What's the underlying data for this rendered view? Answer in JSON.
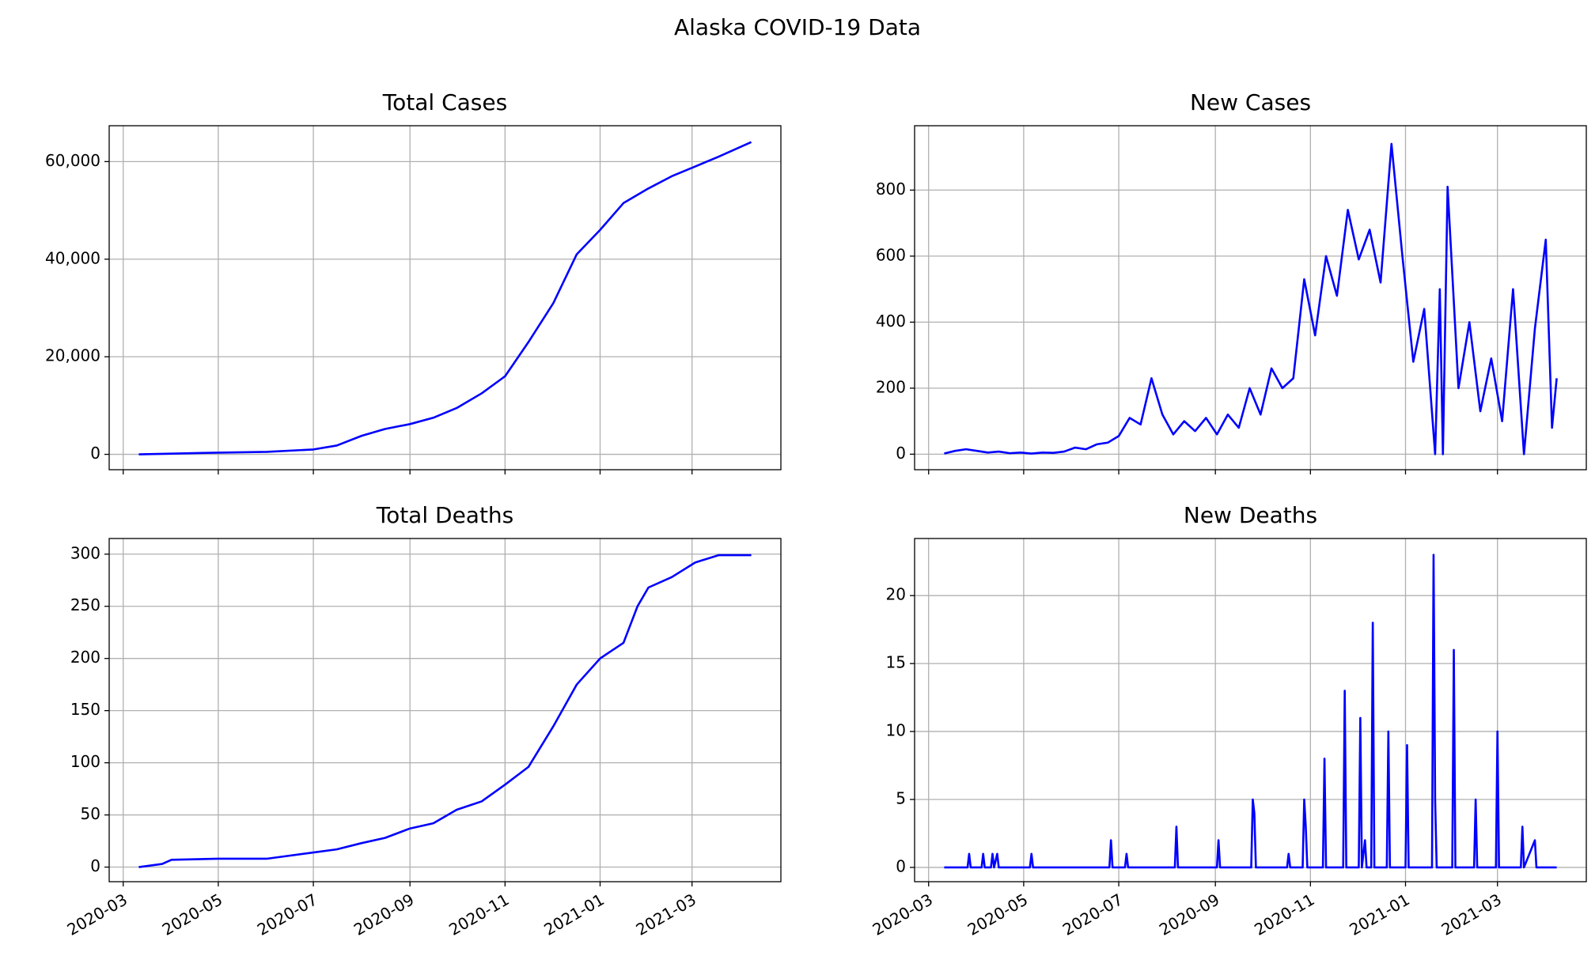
{
  "title": "Alaska COVID-19 Data",
  "chart_data": [
    {
      "type": "line",
      "title": "Total Cases",
      "grid": true,
      "color": "#0000ff",
      "x": [
        10,
        31,
        61,
        92,
        122,
        137,
        153,
        168,
        184,
        199,
        214,
        230,
        245,
        260,
        276,
        291,
        306,
        321,
        337,
        352,
        367,
        382,
        403
      ],
      "values": [
        0,
        150,
        350,
        500,
        1000,
        1800,
        3800,
        5200,
        6200,
        7500,
        9500,
        12500,
        16000,
        23000,
        31000,
        41000,
        46000,
        51500,
        54500,
        57000,
        59000,
        61000,
        64000
      ],
      "xlim": [
        -9,
        422
      ],
      "xticks": [
        0,
        61,
        122,
        184,
        245,
        306,
        365
      ],
      "ylim": [
        -3150,
        67350
      ],
      "yticks": [
        0,
        {
          "value": 20000,
          "label": "20,000"
        },
        {
          "value": 40000,
          "label": "40,000"
        },
        {
          "value": 60000,
          "label": "60,000"
        }
      ]
    },
    {
      "type": "line",
      "title": "New Cases",
      "grid": true,
      "color": "#0000ff",
      "x": [
        10,
        17,
        24,
        31,
        38,
        45,
        52,
        59,
        66,
        73,
        80,
        87,
        94,
        101,
        108,
        115,
        122,
        129,
        136,
        143,
        150,
        157,
        164,
        171,
        178,
        185,
        192,
        199,
        206,
        213,
        220,
        227,
        234,
        241,
        248,
        255,
        262,
        269,
        276,
        283,
        290,
        297,
        304,
        311,
        318,
        325,
        328,
        330,
        333,
        340,
        347,
        354,
        361,
        368,
        375,
        382,
        389,
        396,
        400,
        403
      ],
      "values": [
        2,
        10,
        15,
        10,
        5,
        8,
        3,
        5,
        2,
        5,
        4,
        8,
        20,
        15,
        30,
        35,
        55,
        110,
        90,
        230,
        120,
        60,
        100,
        70,
        110,
        60,
        120,
        80,
        200,
        120,
        260,
        200,
        230,
        530,
        360,
        600,
        480,
        740,
        590,
        680,
        520,
        940,
        600,
        280,
        440,
        0,
        500,
        0,
        810,
        200,
        400,
        130,
        290,
        100,
        500,
        0,
        380,
        650,
        80,
        230
      ],
      "xlim": [
        -9,
        422
      ],
      "xticks": [
        0,
        61,
        122,
        184,
        245,
        306,
        365
      ],
      "ylim": [
        -47,
        995
      ],
      "yticks": [
        0,
        200,
        400,
        600,
        800
      ]
    },
    {
      "type": "line",
      "title": "Total Deaths",
      "grid": true,
      "color": "#0000ff",
      "x": [
        10,
        25,
        31,
        61,
        92,
        122,
        137,
        153,
        168,
        184,
        199,
        214,
        230,
        245,
        260,
        276,
        291,
        306,
        321,
        330,
        337,
        352,
        367,
        382,
        403
      ],
      "values": [
        0,
        3,
        7,
        8,
        8,
        14,
        17,
        23,
        28,
        37,
        42,
        55,
        63,
        79,
        96,
        135,
        175,
        200,
        215,
        250,
        268,
        278,
        292,
        299,
        299
      ],
      "xlim": [
        -9,
        422
      ],
      "xticks": [
        {
          "value": 0,
          "label": "2020-03"
        },
        {
          "value": 61,
          "label": "2020-05"
        },
        {
          "value": 122,
          "label": "2020-07"
        },
        {
          "value": 184,
          "label": "2020-09"
        },
        {
          "value": 245,
          "label": "2020-11"
        },
        {
          "value": 306,
          "label": "2021-01"
        },
        {
          "value": 365,
          "label": "2021-03"
        }
      ],
      "ylim": [
        -14,
        315
      ],
      "yticks": [
        0,
        50,
        100,
        150,
        200,
        250,
        300
      ]
    },
    {
      "type": "line",
      "title": "New Deaths",
      "grid": true,
      "color": "#0000ff",
      "x": [
        10,
        25,
        26,
        27,
        34,
        35,
        36,
        40,
        41,
        42,
        44,
        45,
        65,
        66,
        67,
        116,
        117,
        118,
        126,
        127,
        128,
        158,
        159,
        160,
        185,
        186,
        187,
        207,
        208,
        209,
        210,
        230,
        231,
        232,
        240,
        241,
        242,
        243,
        253,
        254,
        255,
        266,
        267,
        268,
        276,
        277,
        278,
        280,
        281,
        284,
        285,
        286,
        294,
        295,
        296,
        306,
        307,
        308,
        323,
        324,
        325,
        326,
        336,
        337,
        338,
        350,
        351,
        352,
        364,
        365,
        366,
        380,
        381,
        382,
        389,
        390,
        403
      ],
      "values": [
        0,
        0,
        1,
        0,
        0,
        1,
        0,
        0,
        1,
        0,
        1,
        0,
        0,
        1,
        0,
        0,
        2,
        0,
        0,
        1,
        0,
        0,
        3,
        0,
        0,
        2,
        0,
        0,
        5,
        4,
        0,
        0,
        1,
        0,
        0,
        5,
        3,
        0,
        0,
        8,
        0,
        0,
        13,
        0,
        0,
        11,
        0,
        2,
        0,
        0,
        18,
        0,
        0,
        10,
        0,
        0,
        9,
        0,
        0,
        23,
        5,
        0,
        0,
        16,
        0,
        0,
        5,
        0,
        0,
        10,
        0,
        0,
        3,
        0,
        2,
        0,
        0
      ],
      "xlim": [
        -9,
        422
      ],
      "xticks": [
        {
          "value": 0,
          "label": "2020-03"
        },
        {
          "value": 61,
          "label": "2020-05"
        },
        {
          "value": 122,
          "label": "2020-07"
        },
        {
          "value": 184,
          "label": "2020-09"
        },
        {
          "value": 245,
          "label": "2020-11"
        },
        {
          "value": 306,
          "label": "2021-01"
        },
        {
          "value": 365,
          "label": "2021-03"
        }
      ],
      "ylim": [
        -1.05,
        24.2
      ],
      "yticks": [
        0,
        5,
        10,
        15,
        20
      ]
    }
  ]
}
